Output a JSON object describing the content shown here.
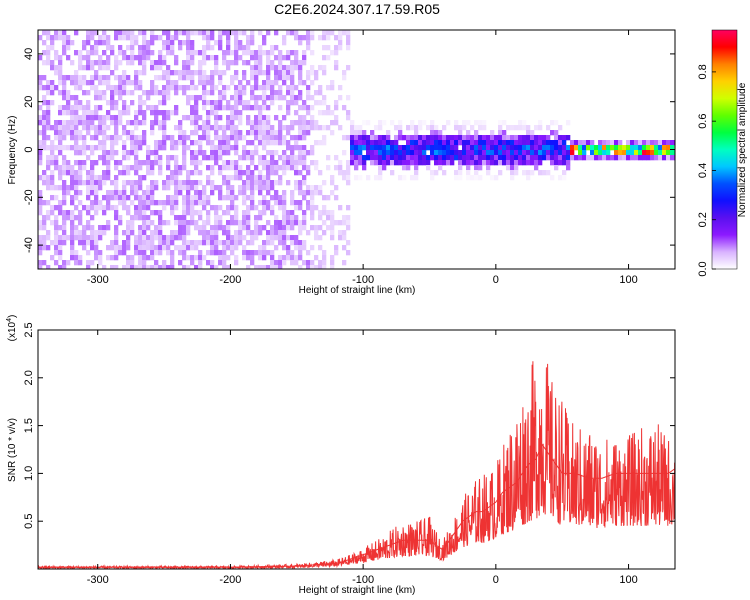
{
  "title": "C2E6.2024.307.17.59.R05",
  "chart_data": [
    {
      "type": "heatmap",
      "xlabel": "Height of straight line (km)",
      "ylabel": "Frequency (Hz)",
      "xlim": [
        -345,
        135
      ],
      "ylim": [
        -50,
        50
      ],
      "x_ticks": [
        -300,
        -200,
        -100,
        0,
        100
      ],
      "x_tick_labels": [
        "-300",
        "-200",
        "-100",
        "0",
        "100"
      ],
      "y_ticks": [
        -40,
        -20,
        0,
        20,
        40
      ],
      "y_tick_labels": [
        "-40",
        "-20",
        "0",
        "20",
        "40"
      ],
      "colorbar": {
        "label": "Normalized spectral amplitude",
        "range": [
          0,
          0.97
        ],
        "ticks": [
          0.0,
          0.2,
          0.4,
          0.6,
          0.8
        ],
        "tick_labels": [
          "0.0",
          "0.2",
          "0.4",
          "0.6",
          "0.8"
        ],
        "colormap": [
          "#ffffff",
          "#d9b3ff",
          "#8c1aff",
          "#5a10f0",
          "#1010ff",
          "#0050ff",
          "#00c8ff",
          "#00ffc0",
          "#00ff40",
          "#60ff00",
          "#d0ff00",
          "#ffd000",
          "#ff8000",
          "#ff0000",
          "#ff0060"
        ]
      },
      "features": [
        {
          "x_range": [
            -345,
            -140
          ],
          "freq_range": [
            -50,
            50
          ],
          "amplitude": 0.08,
          "description_level": "broadband, weak"
        },
        {
          "x_range": [
            -140,
            -110
          ],
          "freq_range": [
            -50,
            50
          ],
          "amplitude": 0.05,
          "description_level": "sparse"
        },
        {
          "x_range": [
            -110,
            55
          ],
          "freq_range": [
            -12,
            12
          ],
          "amplitude": 0.3,
          "description_level": "band around 0 Hz"
        },
        {
          "x_range": [
            55,
            135
          ],
          "freq_range": [
            -4,
            4
          ],
          "amplitude": 0.9,
          "description_level": "narrow strong line at 0 Hz"
        }
      ]
    },
    {
      "type": "line",
      "xlabel": "Height of straight line (km)",
      "ylabel": "SNR (10 * v/v)",
      "y_multiplier": "(x10^4)",
      "y_multiplier_base": "(x10",
      "y_multiplier_exp": "4",
      "y_multiplier_close": ")",
      "color": "#ee3333",
      "xlim": [
        -345,
        135
      ],
      "ylim": [
        0,
        2.5
      ],
      "x_ticks": [
        -300,
        -200,
        -100,
        0,
        100
      ],
      "x_tick_labels": [
        "-300",
        "-200",
        "-100",
        "0",
        "100"
      ],
      "y_ticks": [
        0.5,
        1.0,
        1.5,
        2.0,
        2.5
      ],
      "y_tick_labels": [
        "0.5",
        "1.0",
        "1.5",
        "2.0",
        "2.5"
      ],
      "x": [
        -345,
        -300,
        -250,
        -200,
        -150,
        -120,
        -110,
        -100,
        -90,
        -80,
        -70,
        -60,
        -50,
        -45,
        -40,
        -35,
        -30,
        -25,
        -20,
        -15,
        -10,
        -5,
        0,
        5,
        10,
        15,
        20,
        25,
        30,
        35,
        40,
        45,
        50,
        55,
        60,
        70,
        80,
        90,
        100,
        110,
        120,
        130,
        135
      ],
      "y": [
        0.02,
        0.02,
        0.02,
        0.02,
        0.03,
        0.06,
        0.1,
        0.15,
        0.2,
        0.25,
        0.3,
        0.3,
        0.3,
        0.25,
        0.2,
        0.3,
        0.4,
        0.5,
        0.55,
        0.6,
        0.6,
        0.65,
        0.7,
        0.8,
        0.85,
        0.9,
        1.0,
        1.1,
        1.15,
        1.3,
        1.2,
        1.1,
        1.0,
        1.0,
        1.0,
        0.95,
        0.95,
        1.0,
        1.0,
        1.0,
        1.0,
        1.0,
        1.05
      ],
      "y_upper": [
        0.03,
        0.03,
        0.03,
        0.03,
        0.05,
        0.1,
        0.15,
        0.22,
        0.3,
        0.4,
        0.5,
        0.5,
        0.55,
        0.4,
        0.3,
        0.45,
        0.6,
        0.75,
        0.85,
        0.95,
        1.0,
        1.05,
        1.1,
        1.3,
        1.5,
        1.7,
        1.9,
        2.05,
        2.3,
        2.5,
        2.1,
        1.9,
        1.8,
        1.6,
        1.5,
        1.5,
        1.4,
        1.4,
        1.4,
        1.5,
        1.55,
        1.4,
        1.35
      ]
    }
  ]
}
